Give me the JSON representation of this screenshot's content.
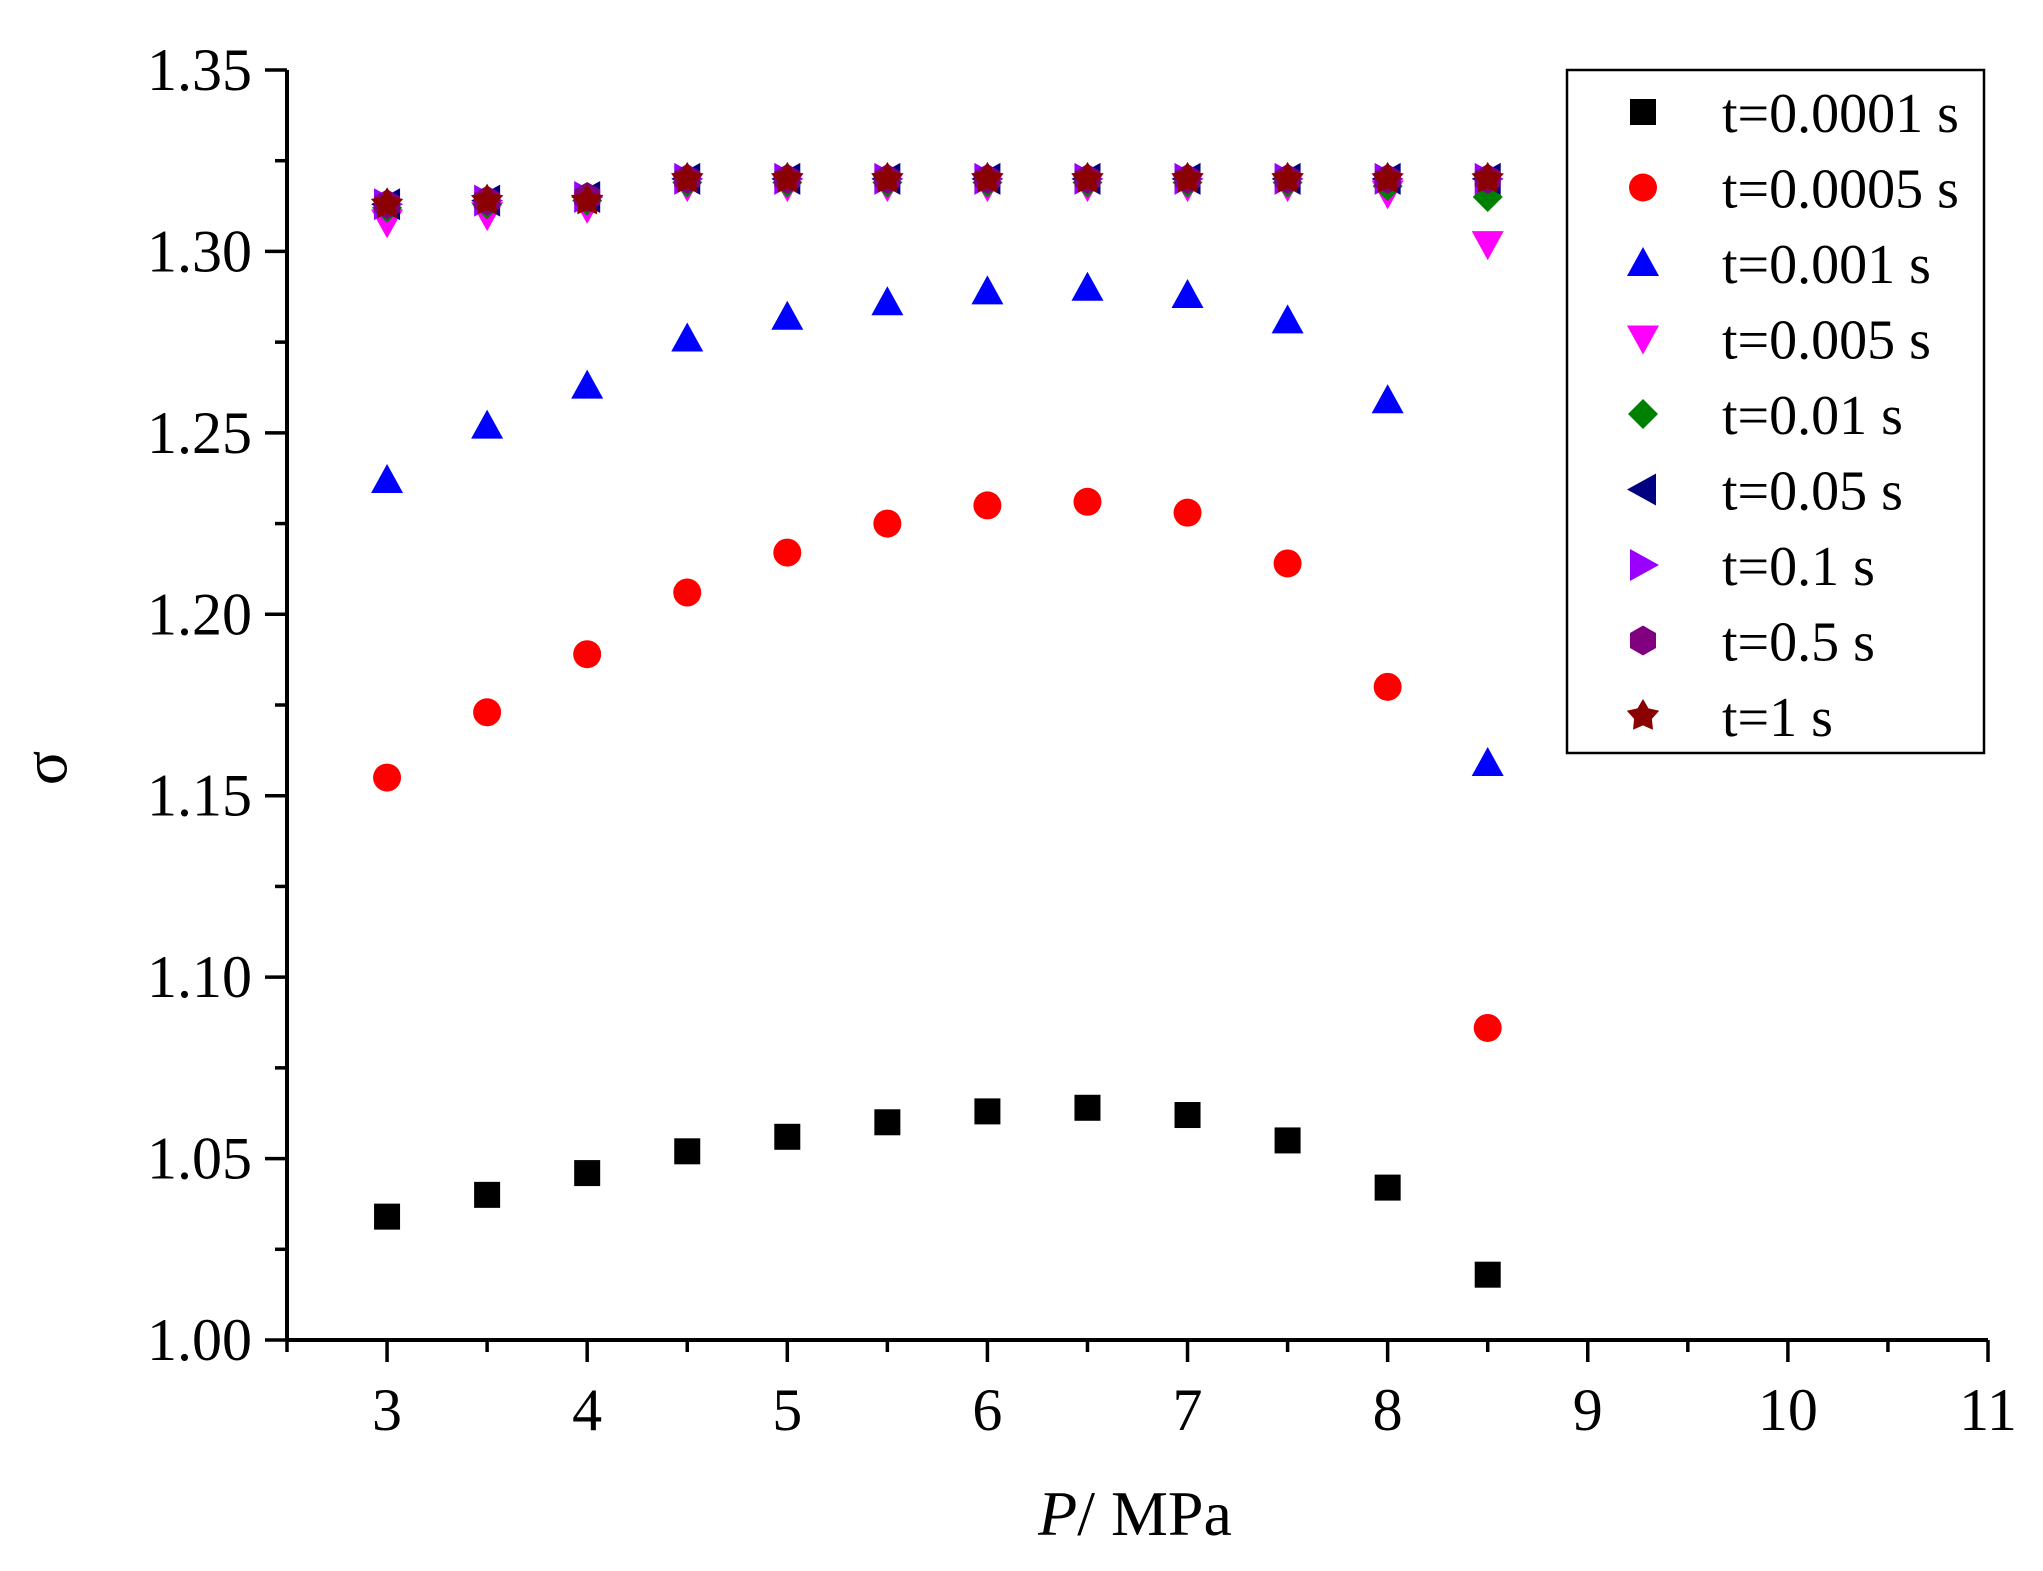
{
  "chart_data": {
    "type": "scatter",
    "title": "",
    "xlabel_italic": "P",
    "xlabel_rest": "/ MPa",
    "ylabel": "σ",
    "xlim": [
      2.5,
      11
    ],
    "ylim": [
      1.0,
      1.35
    ],
    "xticks": [
      "3",
      "4",
      "5",
      "6",
      "7",
      "8",
      "9",
      "10",
      "11"
    ],
    "yticks": [
      "1.00",
      "1.05",
      "1.10",
      "1.15",
      "1.20",
      "1.25",
      "1.30",
      "1.35"
    ],
    "legend_position": "top-right",
    "x": [
      3,
      3.5,
      4,
      4.5,
      5,
      5.5,
      6,
      6.5,
      7,
      7.5,
      8,
      8.5
    ],
    "series": [
      {
        "name": "t=0.0001 s",
        "marker": "square",
        "color": "#000000",
        "values": [
          1.034,
          1.04,
          1.046,
          1.052,
          1.056,
          1.06,
          1.063,
          1.064,
          1.062,
          1.055,
          1.042,
          1.018
        ]
      },
      {
        "name": "t=0.0005 s",
        "marker": "circle",
        "color": "#ff0000",
        "values": [
          1.155,
          1.173,
          1.189,
          1.206,
          1.217,
          1.225,
          1.23,
          1.231,
          1.228,
          1.214,
          1.18,
          1.086
        ]
      },
      {
        "name": "t=0.001 s",
        "marker": "triangle-up",
        "color": "#0000ff",
        "values": [
          1.237,
          1.252,
          1.263,
          1.276,
          1.282,
          1.286,
          1.289,
          1.29,
          1.288,
          1.281,
          1.259,
          1.159
        ]
      },
      {
        "name": "t=0.005 s",
        "marker": "triangle-down",
        "color": "#ff00ff",
        "values": [
          1.308,
          1.31,
          1.312,
          1.318,
          1.318,
          1.318,
          1.318,
          1.318,
          1.318,
          1.318,
          1.316,
          1.302
        ]
      },
      {
        "name": "t=0.01 s",
        "marker": "diamond",
        "color": "#008000",
        "values": [
          1.312,
          1.313,
          1.314,
          1.319,
          1.319,
          1.319,
          1.319,
          1.319,
          1.319,
          1.319,
          1.318,
          1.315
        ]
      },
      {
        "name": "t=0.05 s",
        "marker": "triangle-left",
        "color": "#000080",
        "values": [
          1.313,
          1.314,
          1.315,
          1.32,
          1.32,
          1.32,
          1.32,
          1.32,
          1.32,
          1.32,
          1.32,
          1.32
        ]
      },
      {
        "name": "t=0.1 s",
        "marker": "triangle-right",
        "color": "#9900ff",
        "values": [
          1.313,
          1.314,
          1.315,
          1.32,
          1.32,
          1.32,
          1.32,
          1.32,
          1.32,
          1.32,
          1.32,
          1.32
        ]
      },
      {
        "name": "t=0.5 s",
        "marker": "hexagon",
        "color": "#800080",
        "values": [
          1.313,
          1.314,
          1.315,
          1.32,
          1.32,
          1.32,
          1.32,
          1.32,
          1.32,
          1.32,
          1.32,
          1.32
        ]
      },
      {
        "name": "t=1 s",
        "marker": "star",
        "color": "#8b0000",
        "values": [
          1.313,
          1.314,
          1.314,
          1.32,
          1.32,
          1.32,
          1.32,
          1.32,
          1.32,
          1.32,
          1.32,
          1.32
        ]
      }
    ]
  }
}
